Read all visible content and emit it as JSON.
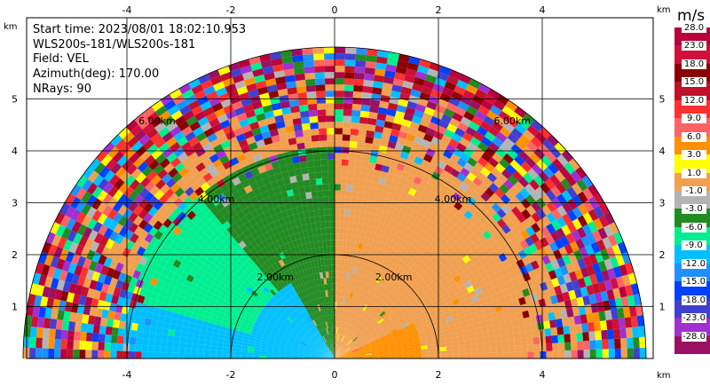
{
  "info": {
    "start_time": "Start time: 2023/08/01 18:02:10.953",
    "instrument": "WLS200s-181/WLS200s-181",
    "field": "Field: VEL",
    "azimuth": "Azimuth(deg): 170.00",
    "nrays": "NRays: 90"
  },
  "colorbar": {
    "unit": "m/s",
    "levels": [
      "28.0",
      "23.0",
      "18.0",
      "15.0",
      "12.0",
      "9.0",
      "6.0",
      "3.0",
      "1.0",
      "-1.0",
      "-3.0",
      "-6.0",
      "-9.0",
      "-12.0",
      "-15.0",
      "-18.0",
      "-23.0",
      "-28.0"
    ],
    "colors": [
      "#b8003c",
      "#d0103a",
      "#8b0000",
      "#c0102a",
      "#ff3030",
      "#ff6464",
      "#ff9000",
      "#ffff00",
      "#f0a050",
      "#b4b4b4",
      "#228b22",
      "#00ee90",
      "#00bfff",
      "#1e90ff",
      "#0040ff",
      "#4040d0",
      "#a030d0",
      "#9b1060"
    ]
  },
  "chart_data": {
    "type": "heatmap",
    "title": "",
    "xlabel": "km",
    "ylabel": "km",
    "xlim": [
      -6.2,
      6.2
    ],
    "ylim": [
      0,
      6.2
    ],
    "xticks": [
      "-4",
      "-2",
      "0",
      "2",
      "4"
    ],
    "yticks": [
      "1",
      "2",
      "3",
      "4",
      "5"
    ],
    "range_rings": [
      "2.00km",
      "4.00km",
      "6.00km"
    ],
    "sectors": [
      {
        "az_from": 0,
        "az_to": 35,
        "r_to": 3.6,
        "value": 1.0
      },
      {
        "az_from": 35,
        "az_to": 90,
        "r_to": 3.9,
        "value": 0.0
      },
      {
        "az_from": 90,
        "az_to": 130,
        "r_to": 4.0,
        "value": -3.0
      },
      {
        "az_from": 130,
        "az_to": 165,
        "r_to": 4.2,
        "value": -6.0
      },
      {
        "az_from": 165,
        "az_to": 180,
        "r_to": 4.5,
        "value": -9.0
      },
      {
        "az_from": 0,
        "az_to": 25,
        "r_to": 1.6,
        "value": 6.0
      },
      {
        "az_from": 120,
        "az_to": 180,
        "r_to": 1.6,
        "value": -9.0
      }
    ],
    "outer_range_km": 6.0,
    "azimuth_deg": 170.0,
    "nrays": 90
  }
}
